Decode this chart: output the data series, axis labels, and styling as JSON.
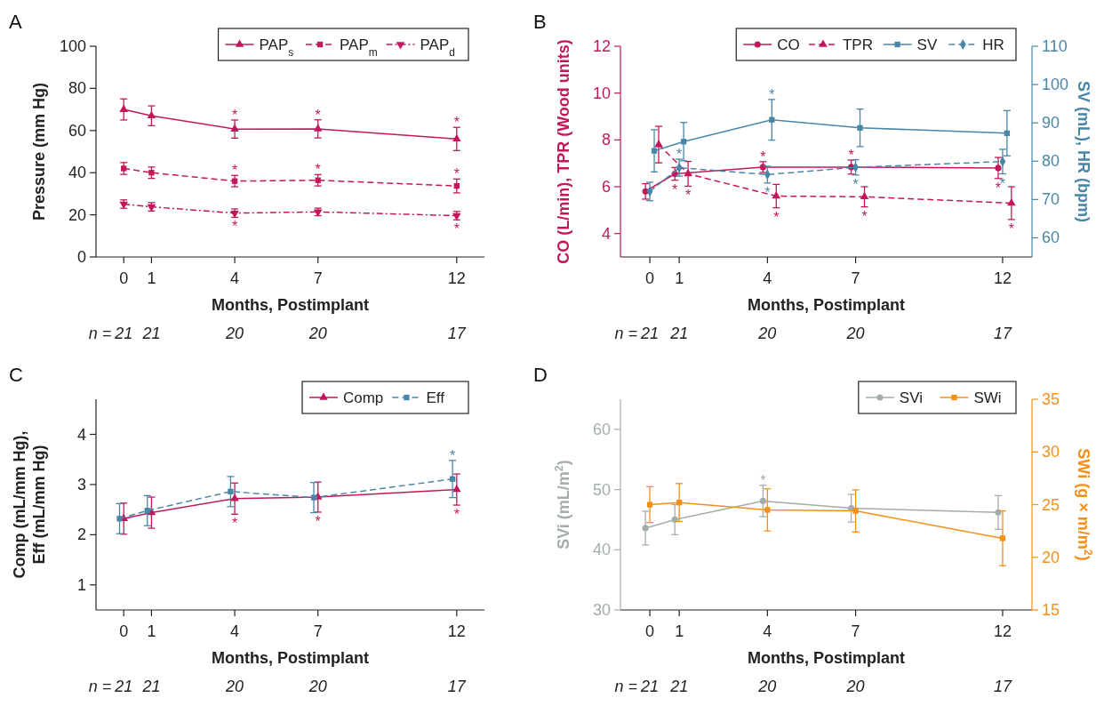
{
  "chart_data": [
    {
      "type": "line",
      "title": "A",
      "xlabel": "Months, Postimplant",
      "ylabel": "Pressure (mm Hg)",
      "xlim": [
        -1,
        13
      ],
      "xticks": [
        0,
        1,
        4,
        7,
        12
      ],
      "ylim": [
        0,
        100
      ],
      "yticks": [
        0,
        20,
        40,
        60,
        80,
        100
      ],
      "legend": "top right",
      "grid": false,
      "series": [
        {
          "name": "PAP$_{s}$",
          "color": "#c2185b",
          "marker": "triangle",
          "line_style": "solid",
          "x": [
            0,
            1,
            4,
            7,
            12
          ],
          "values": [
            70,
            67,
            60.7,
            60.8,
            56
          ],
          "errors": [
            5,
            4.7,
            4.3,
            4.3,
            5.5
          ]
        },
        {
          "name": "PAP$_{m}$",
          "color": "#c2185b",
          "marker": "square",
          "line_style": "dashed",
          "x": [
            0,
            1,
            4,
            7,
            12
          ],
          "values": [
            42,
            40,
            36,
            36.4,
            33.7
          ],
          "errors": [
            2.8,
            2.7,
            2.7,
            2.7,
            3.3
          ]
        },
        {
          "name": "PAP$_{d}$",
          "color": "#c2185b",
          "marker": "triangle-down",
          "line_style": "dashdot",
          "x": [
            0,
            1,
            4,
            7,
            12
          ],
          "values": [
            25.1,
            23.8,
            20.8,
            21.4,
            19.6
          ],
          "errors": [
            2,
            2,
            2,
            1.8,
            2
          ]
        }
      ],
      "annotations": [
        {
          "text": "*",
          "x": 4,
          "y": 65
        },
        {
          "text": "*",
          "x": 7,
          "y": 65.1
        },
        {
          "text": "*",
          "x": 12,
          "y": 61.5
        },
        {
          "text": "*",
          "x": 4,
          "y": 38.7
        },
        {
          "text": "*",
          "x": 7,
          "y": 39.1
        },
        {
          "text": "*",
          "x": 12,
          "y": 37
        },
        {
          "text": "*",
          "x": 4,
          "y": 18.8
        },
        {
          "text": "*",
          "x": 12,
          "y": 17.6
        },
        "n = 21 21 20 20 17"
      ]
    },
    {
      "type": "line",
      "title": "B",
      "xlabel": "Months, Postimplant",
      "ylabel": "CO (L/min), TPR (Wood units)",
      "y2label": "SV (mL), HR (bpm)",
      "xlim": [
        -1,
        13
      ],
      "xticks": [
        0,
        1,
        4,
        7,
        12
      ],
      "ylim": [
        3,
        12
      ],
      "yticks": [
        4,
        6,
        8,
        10,
        12
      ],
      "y2lim": [
        55,
        110
      ],
      "y2ticks": [
        60,
        70,
        80,
        90,
        100,
        110
      ],
      "legend": "top right",
      "grid": false,
      "series": [
        {
          "name": "CO",
          "color": "#c2185b",
          "marker": "circle",
          "line_style": "solid",
          "x": [
            -0.15,
            0.85,
            3.85,
            6.85,
            11.85
          ],
          "values": [
            5.8,
            6.55,
            6.84,
            6.84,
            6.8
          ],
          "errors": [
            0.33,
            0.27,
            0.23,
            0.3,
            0.45
          ]
        },
        {
          "name": "TPR",
          "color": "#c2185b",
          "marker": "triangle",
          "line_style": "dashed",
          "x": [
            0.3,
            1.3,
            4.3,
            7.3,
            12.3
          ],
          "values": [
            7.8,
            6.55,
            5.6,
            5.57,
            5.3
          ],
          "errors": [
            0.78,
            0.53,
            0.5,
            0.43,
            0.7
          ]
        },
        {
          "name": "SV",
          "color": "#4a86a8",
          "marker": "square",
          "line_style": "solid",
          "axis": "y2",
          "x": [
            0.15,
            1.15,
            4.15,
            7.15,
            12.15
          ],
          "values": [
            82.7,
            85.1,
            90.8,
            88.7,
            87.3
          ],
          "errors": [
            5.5,
            5,
            5.3,
            4.9,
            5.9
          ]
        },
        {
          "name": "HR",
          "color": "#4a86a8",
          "marker": "diamond",
          "line_style": "dashed",
          "axis": "y2",
          "x": [
            0,
            1,
            4,
            7,
            12
          ],
          "values": [
            72.1,
            78.3,
            76.5,
            78.4,
            79.9
          ],
          "errors": [
            2.4,
            2.2,
            2.2,
            2,
            3.2
          ]
        }
      ],
      "annotations": [
        {
          "text": "*",
          "x": 0.85,
          "y": 6.28
        },
        {
          "text": "*",
          "x": 1.3,
          "y": 6.02
        },
        {
          "text": "*",
          "x": 3.85,
          "y": 7.07
        },
        {
          "text": "*",
          "x": 4.3,
          "y": 5.1
        },
        {
          "text": "*",
          "x": 6.85,
          "y": 7.14
        },
        {
          "text": "*",
          "x": 7.3,
          "y": 5.14
        },
        {
          "text": "*",
          "x": 11.85,
          "y": 6.35
        },
        {
          "text": "*",
          "x": 12.3,
          "y": 4.6
        },
        {
          "text": "*",
          "x": 1,
          "y": 7.17
        },
        {
          "text": "*",
          "x": 4.15,
          "y": 9.73
        },
        {
          "text": "*",
          "x": 4,
          "y": 6.16
        },
        {
          "text": "*",
          "x": 7,
          "y": 6.5
        },
        {
          "text": "*",
          "x": 12,
          "y": 6.55
        },
        "n = 21 21 20 20 17"
      ]
    },
    {
      "type": "line",
      "title": "C",
      "xlabel": "Months, Postimplant",
      "ylabel": "Comp (mL/mm Hg),\nEff (mL/mm Hg)",
      "xlim": [
        -1,
        13
      ],
      "xticks": [
        0,
        1,
        4,
        7,
        12
      ],
      "ylim": [
        0.5,
        4.7
      ],
      "yticks": [
        1,
        2,
        3,
        4
      ],
      "legend": "top right",
      "grid": false,
      "series": [
        {
          "name": "Comp",
          "color": "#c2185b",
          "marker": "triangle",
          "line_style": "solid",
          "x": [
            0,
            1,
            4,
            7,
            12
          ],
          "values": [
            2.32,
            2.44,
            2.72,
            2.75,
            2.9
          ],
          "errors": [
            0.31,
            0.31,
            0.31,
            0.3,
            0.31
          ]
        },
        {
          "name": "Eff",
          "color": "#4a86a8",
          "marker": "square",
          "line_style": "dashed",
          "x": [
            -0.15,
            0.85,
            3.85,
            6.85,
            11.85
          ],
          "values": [
            2.32,
            2.48,
            2.86,
            2.74,
            3.11
          ],
          "errors": [
            0.3,
            0.3,
            0.3,
            0.3,
            0.37
          ]
        }
      ],
      "annotations": [
        {
          "text": "*",
          "x": 4,
          "y": 2.41
        },
        {
          "text": "*",
          "x": 7,
          "y": 2.45
        },
        {
          "text": "*",
          "x": 12,
          "y": 2.59
        },
        {
          "text": "*",
          "x": 11.85,
          "y": 3.48
        },
        "n = 21 21 20 20 17"
      ]
    },
    {
      "type": "line",
      "title": "D",
      "xlabel": "Months, Postimplant",
      "ylabel": "SVi (mL/m$^{2}$)",
      "y2label": "SWi (g × m/m$^{2}$)",
      "xlim": [
        -1,
        13
      ],
      "xticks": [
        0,
        1,
        4,
        7,
        12
      ],
      "ylim": [
        30,
        65
      ],
      "yticks": [
        30,
        40,
        50,
        60
      ],
      "y2lim": [
        15,
        35
      ],
      "y2ticks": [
        15,
        20,
        25,
        30,
        35
      ],
      "legend": "top right",
      "grid": false,
      "series": [
        {
          "name": "SVi",
          "color": "#a3adad",
          "marker": "circle",
          "line_style": "solid",
          "x": [
            -0.15,
            0.85,
            3.85,
            6.85,
            11.85
          ],
          "values": [
            43.6,
            45,
            48.1,
            46.9,
            46.2
          ],
          "errors": [
            2.8,
            2.5,
            2.6,
            2.3,
            2.8
          ]
        },
        {
          "name": "SWi",
          "color": "#f39019",
          "marker": "square",
          "line_style": "solid",
          "axis": "y2",
          "x": [
            0,
            1,
            4,
            7,
            12
          ],
          "values": [
            25,
            25.2,
            24.5,
            24.4,
            21.8
          ],
          "errors": [
            1.7,
            1.8,
            2,
            2,
            2.6
          ]
        }
      ],
      "annotations": [
        {
          "text": "*",
          "x": 3.85,
          "y": 50.7
        },
        "n = 21 21 20 20 17"
      ]
    }
  ]
}
